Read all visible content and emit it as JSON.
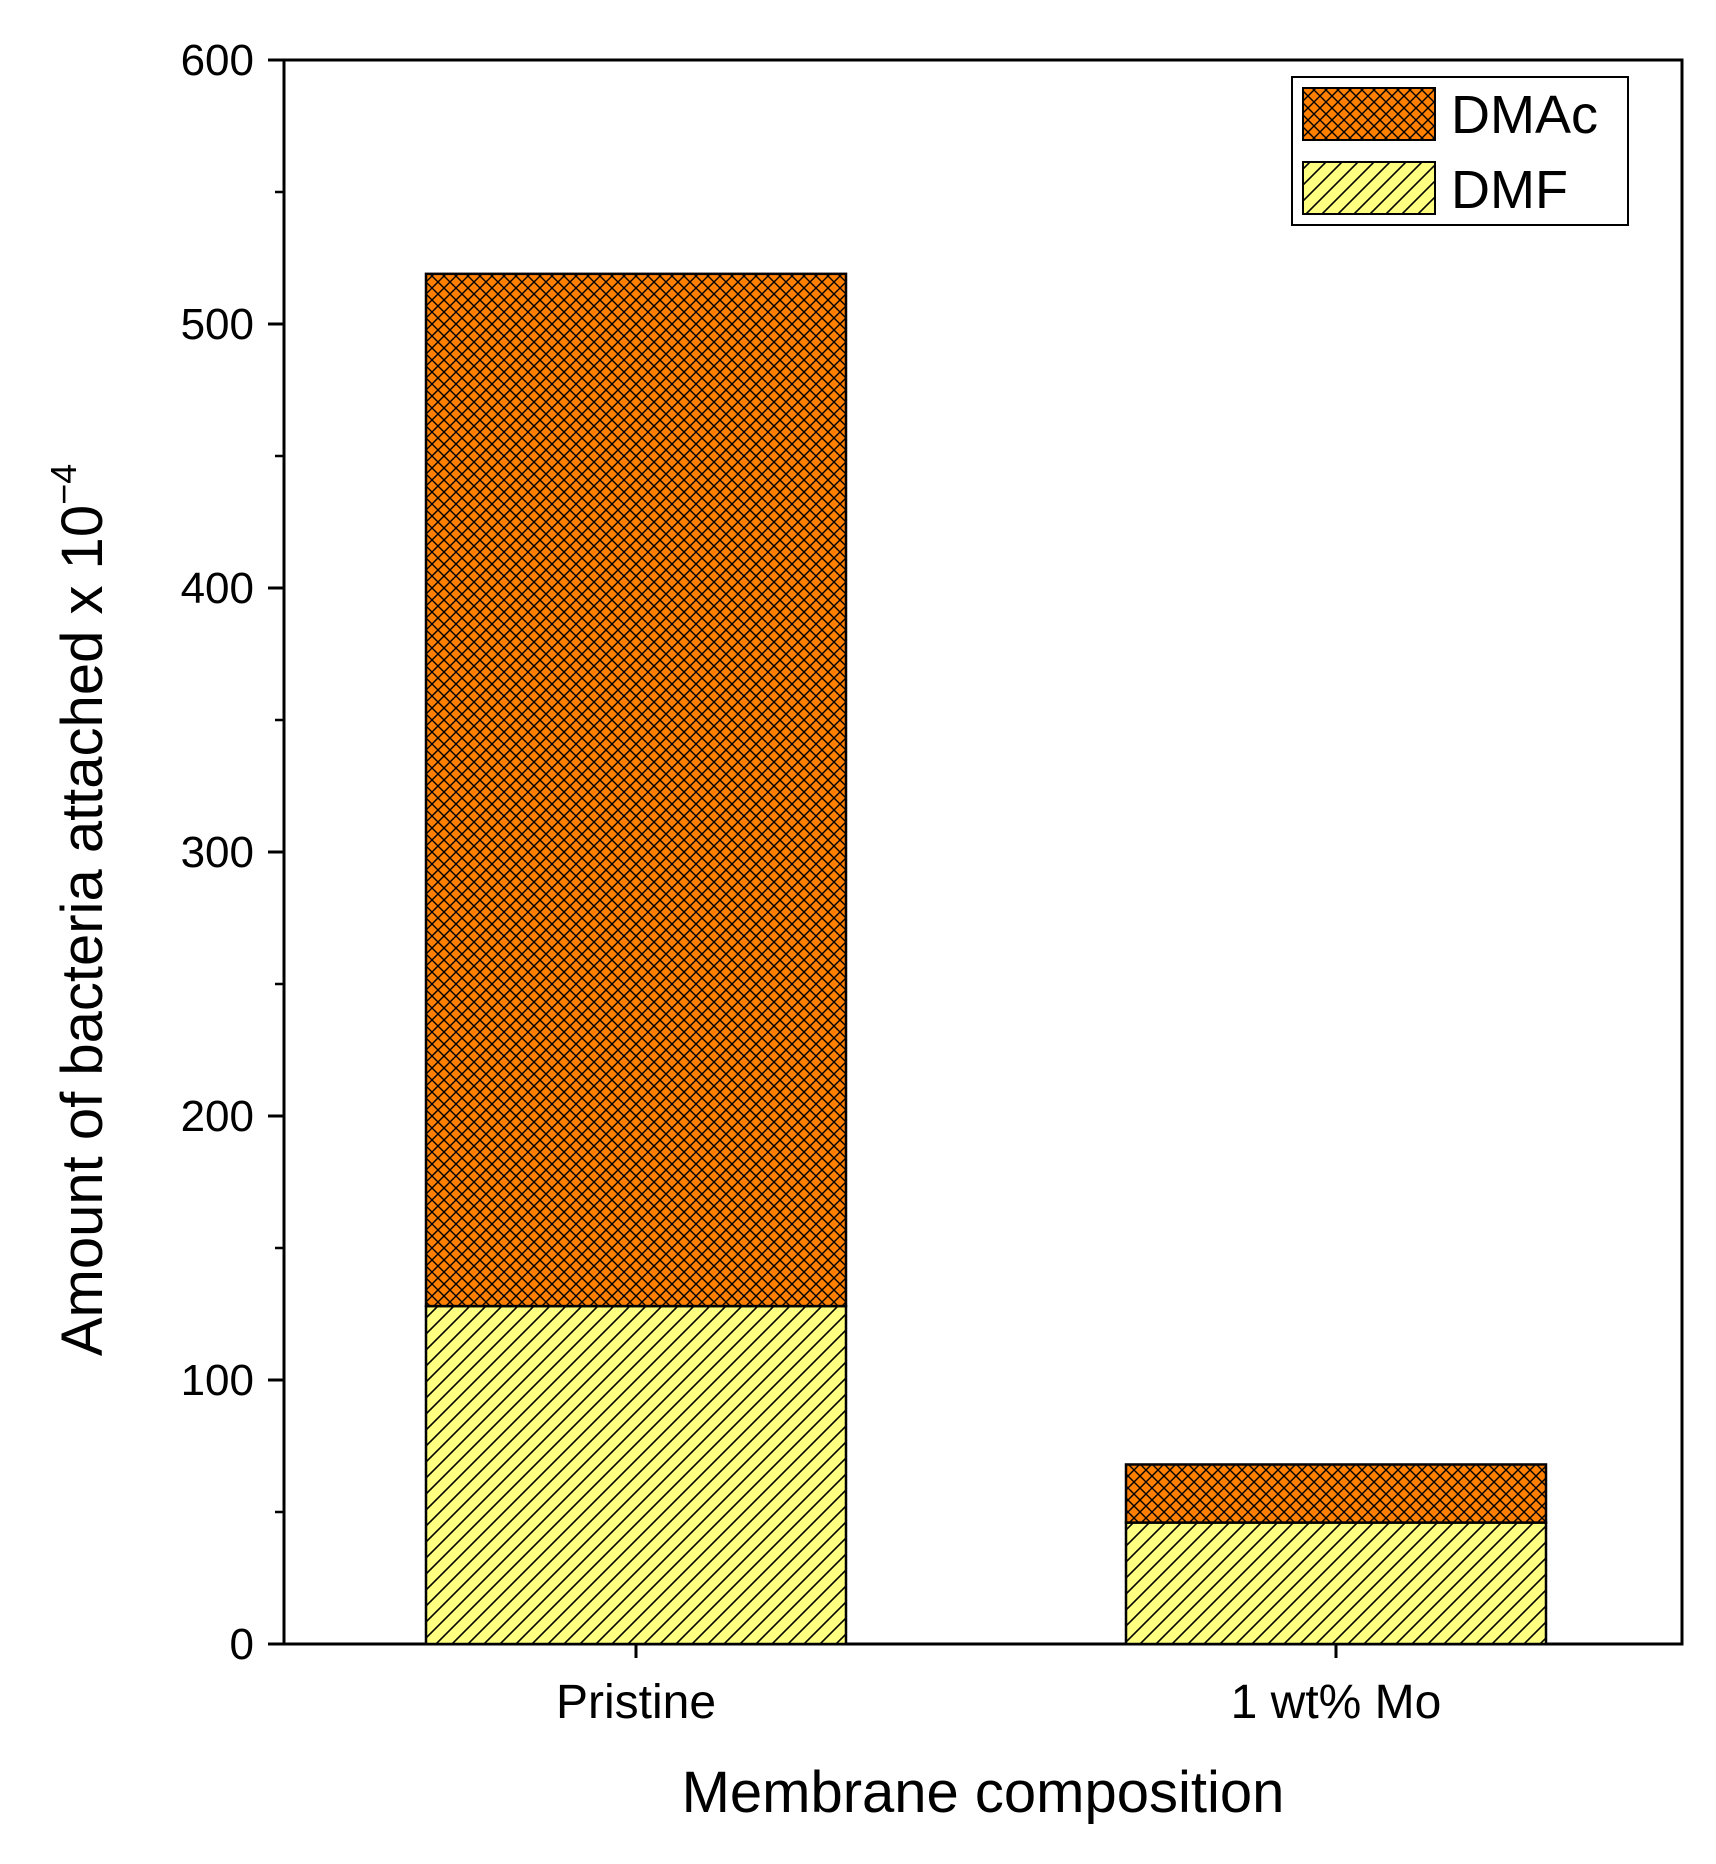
{
  "chart_data": {
    "type": "bar",
    "stacked": true,
    "categories": [
      "Pristine",
      "1 wt% Mo"
    ],
    "series": [
      {
        "name": "DMF",
        "values": [
          128,
          46
        ],
        "color": "#ffff80",
        "pattern": "diagonal-hatch"
      },
      {
        "name": "DMAc",
        "values": [
          391,
          22
        ],
        "color": "#ff8000",
        "pattern": "cross-hatch"
      }
    ],
    "xlabel": "Membrane composition",
    "ylabel": "Amount of bacteria attached x 10",
    "ylabel_superscript": "−4",
    "ylim": [
      0,
      600
    ],
    "yticks": [
      "0",
      "100",
      "200",
      "300",
      "400",
      "500",
      "600"
    ],
    "ytick_values": [
      0,
      100,
      200,
      300,
      400,
      500,
      600
    ],
    "legend_position": "top-right",
    "grid": false
  }
}
